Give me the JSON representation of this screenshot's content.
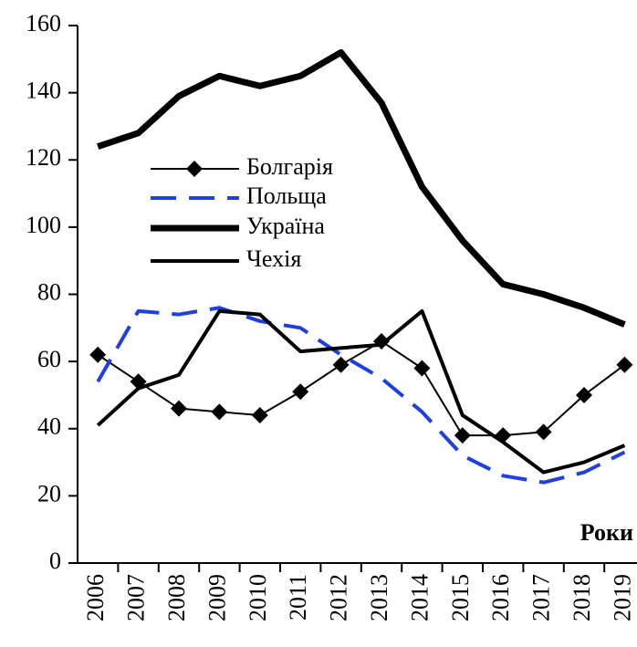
{
  "chart_data": {
    "type": "line",
    "x_label": "Роки",
    "categories": [
      "2006",
      "2007",
      "2008",
      "2009",
      "2010",
      "2011",
      "2012",
      "2013",
      "2014",
      "2015",
      "2016",
      "2017",
      "2018",
      "2019"
    ],
    "series": [
      {
        "name": "Болгарія",
        "color": "#000000",
        "width": 2,
        "marker": "diamond",
        "dash": "solid",
        "values": [
          62,
          54,
          46,
          45,
          44,
          51,
          59,
          66,
          58,
          38,
          38,
          39,
          50,
          59
        ]
      },
      {
        "name": "Польща",
        "color": "#1f3fe0",
        "width": 4,
        "marker": "none",
        "dash": "dashed",
        "values": [
          54,
          75,
          74,
          76,
          72,
          70,
          62,
          55,
          45,
          32,
          26,
          24,
          27,
          33
        ]
      },
      {
        "name": "Україна",
        "color": "#000000",
        "width": 7,
        "marker": "none",
        "dash": "solid",
        "values": [
          124,
          128,
          139,
          145,
          142,
          145,
          152,
          137,
          112,
          96,
          83,
          80,
          76,
          71
        ]
      },
      {
        "name": "Чехія",
        "color": "#000000",
        "width": 4,
        "marker": "none",
        "dash": "solid",
        "values": [
          41,
          52,
          56,
          75,
          74,
          63,
          64,
          65,
          75,
          44,
          36,
          27,
          30,
          35
        ]
      }
    ],
    "ylim": [
      0,
      160
    ],
    "yticks": [
      0,
      20,
      40,
      60,
      80,
      100,
      120,
      140,
      160
    ],
    "grid": false
  }
}
